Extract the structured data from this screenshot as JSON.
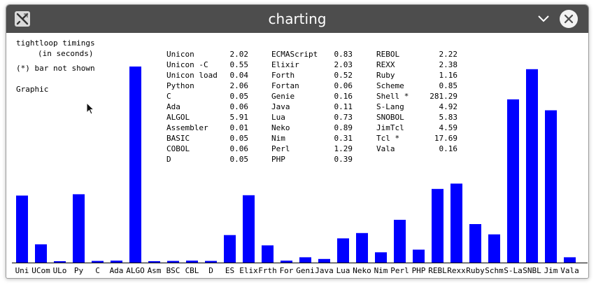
{
  "window": {
    "title": "charting"
  },
  "header": {
    "line1": "tightloop timings",
    "line2": "(in seconds)",
    "note": "(*) bar not shown",
    "graphic": "Graphic"
  },
  "timings": [
    [
      {
        "name": "Unicon",
        "value": "2.02"
      },
      {
        "name": "Unicon -C",
        "value": "0.55"
      },
      {
        "name": "Unicon load",
        "value": "0.04"
      },
      {
        "name": "Python",
        "value": "2.06"
      },
      {
        "name": "C",
        "value": "0.05"
      },
      {
        "name": "Ada",
        "value": "0.06"
      },
      {
        "name": "ALGOL",
        "value": "5.91"
      },
      {
        "name": "Assembler",
        "value": "0.01"
      },
      {
        "name": "BASIC",
        "value": "0.05"
      },
      {
        "name": "COBOL",
        "value": "0.06"
      },
      {
        "name": "D",
        "value": "0.05"
      }
    ],
    [
      {
        "name": "ECMAScript",
        "value": "0.83"
      },
      {
        "name": "Elixir",
        "value": "2.03"
      },
      {
        "name": "Forth",
        "value": "0.52"
      },
      {
        "name": "Fortan",
        "value": "0.06"
      },
      {
        "name": "Genie",
        "value": "0.16"
      },
      {
        "name": "Java",
        "value": "0.11"
      },
      {
        "name": "Lua",
        "value": "0.73"
      },
      {
        "name": "Neko",
        "value": "0.89"
      },
      {
        "name": "Nim",
        "value": "0.31"
      },
      {
        "name": "Perl",
        "value": "1.29"
      },
      {
        "name": "PHP",
        "value": "0.39"
      }
    ],
    [
      {
        "name": "REBOL",
        "value": "2.22"
      },
      {
        "name": "REXX",
        "value": "2.38"
      },
      {
        "name": "Ruby",
        "value": "1.16"
      },
      {
        "name": "Scheme",
        "value": "0.85"
      },
      {
        "name": "Shell *",
        "value": "281.29"
      },
      {
        "name": "S-Lang",
        "value": "4.92"
      },
      {
        "name": "SNOBOL",
        "value": "5.83"
      },
      {
        "name": "JimTcl",
        "value": "4.59"
      },
      {
        "name": "Tcl *",
        "value": "17.69"
      },
      {
        "name": "Vala",
        "value": "0.16"
      }
    ]
  ],
  "colors": {
    "bar": "#0000ff",
    "titlebar": "#4d4d4d"
  },
  "icons": {
    "app": "x-logo-icon",
    "minimize": "chevron-down-icon",
    "close": "close-icon",
    "cursor": "mouse-pointer-icon"
  },
  "chart_data": {
    "type": "bar",
    "ylim": [
      0,
      5.91
    ],
    "grid": false,
    "categories": [
      "Uni",
      "UCom",
      "ULo",
      "Py",
      "C",
      "Ada",
      "ALGO",
      "Asm",
      "BSC",
      "CBL",
      "D",
      "ES",
      "Elix",
      "Frth",
      "For",
      "Geni",
      "Java",
      "Lua",
      "Neko",
      "Nim",
      "Perl",
      "PHP",
      "REBL",
      "Rexx",
      "Ruby",
      "Schm",
      "S-La",
      "SNBL",
      "Jim",
      "Vala"
    ],
    "values": [
      2.02,
      0.55,
      0.04,
      2.06,
      0.05,
      0.06,
      5.91,
      0.01,
      0.05,
      0.06,
      0.05,
      0.83,
      2.03,
      0.52,
      0.06,
      0.16,
      0.11,
      0.73,
      0.89,
      0.31,
      1.29,
      0.39,
      2.22,
      2.38,
      1.16,
      0.85,
      4.92,
      5.83,
      4.59,
      0.16
    ]
  }
}
